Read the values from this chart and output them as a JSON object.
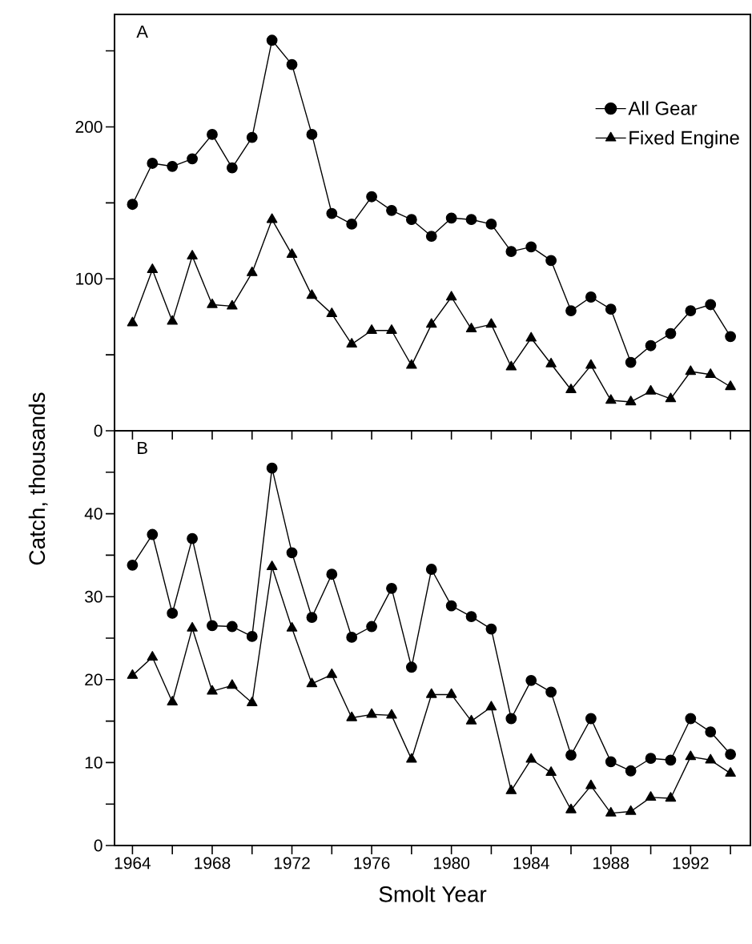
{
  "chart_data": [
    {
      "type": "line",
      "annotations": [
        "A"
      ],
      "ylabel": "Catch, thousands",
      "x": [
        1964,
        1965,
        1966,
        1967,
        1968,
        1969,
        1970,
        1971,
        1972,
        1973,
        1974,
        1975,
        1976,
        1977,
        1978,
        1979,
        1980,
        1981,
        1982,
        1983,
        1984,
        1985,
        1986,
        1987,
        1988,
        1989,
        1990,
        1991,
        1992,
        1993,
        1994
      ],
      "series": [
        {
          "name": "All Gear",
          "color": "#000000",
          "marker": "circle",
          "values": [
            149,
            176,
            174,
            179,
            195,
            173,
            193,
            257,
            241,
            195,
            143,
            136,
            154,
            145,
            139,
            128,
            140,
            139,
            136,
            118,
            121,
            112,
            79,
            88,
            80,
            45,
            56,
            64,
            79,
            83,
            62
          ]
        },
        {
          "name": "Fixed Engine",
          "color": "#000000",
          "marker": "triangle",
          "values": [
            71,
            106,
            72,
            115,
            83,
            82,
            104,
            139,
            116,
            89,
            77,
            57,
            66,
            66,
            43,
            70,
            88,
            67,
            70,
            42,
            61,
            44,
            27,
            43,
            20,
            19,
            26,
            21,
            39,
            37,
            29
          ]
        }
      ],
      "xlim": [
        1963.1,
        1995
      ],
      "ylim": [
        0,
        274
      ],
      "xticks": [
        {
          "value": 1964,
          "label": null
        },
        {
          "value": 1966,
          "label": null
        },
        {
          "value": 1968,
          "label": null
        },
        {
          "value": 1970,
          "label": null
        },
        {
          "value": 1972,
          "label": null
        },
        {
          "value": 1974,
          "label": null
        },
        {
          "value": 1976,
          "label": null
        },
        {
          "value": 1978,
          "label": null
        },
        {
          "value": 1980,
          "label": null
        },
        {
          "value": 1982,
          "label": null
        },
        {
          "value": 1984,
          "label": null
        },
        {
          "value": 1986,
          "label": null
        },
        {
          "value": 1988,
          "label": null
        },
        {
          "value": 1990,
          "label": null
        },
        {
          "value": 1992,
          "label": null
        },
        {
          "value": 1994,
          "label": null
        }
      ],
      "yticks": [
        0,
        {
          "value": 50,
          "label": null
        },
        100,
        {
          "value": 150,
          "label": null
        },
        200,
        {
          "value": 250,
          "label": null
        }
      ],
      "tick_labels": "y",
      "legend": "top right",
      "grid": false
    },
    {
      "type": "line",
      "annotations": [
        "B"
      ],
      "xlabel": "Smolt Year",
      "x": [
        1964,
        1965,
        1966,
        1967,
        1968,
        1969,
        1970,
        1971,
        1972,
        1973,
        1974,
        1975,
        1976,
        1977,
        1978,
        1979,
        1980,
        1981,
        1982,
        1983,
        1984,
        1985,
        1986,
        1987,
        1988,
        1989,
        1990,
        1991,
        1992,
        1993,
        1994
      ],
      "series": [
        {
          "color": "#000000",
          "marker": "circle",
          "values": [
            33.8,
            37.5,
            28,
            37,
            26.5,
            26.4,
            25.2,
            45.5,
            35.3,
            27.5,
            32.7,
            25.1,
            26.4,
            31,
            21.5,
            33.3,
            28.9,
            27.6,
            26.1,
            15.3,
            19.9,
            18.5,
            10.9,
            15.3,
            10.1,
            9,
            10.5,
            10.3,
            15.3,
            13.7,
            11
          ]
        },
        {
          "color": "#000000",
          "marker": "triangle",
          "values": [
            20.5,
            22.7,
            17.3,
            26.2,
            18.6,
            19.3,
            17.2,
            33.6,
            26.2,
            19.5,
            20.6,
            15.4,
            15.8,
            15.7,
            10.4,
            18.2,
            18.2,
            15,
            16.7,
            6.6,
            10.4,
            8.8,
            4.3,
            7.2,
            3.9,
            4.1,
            5.8,
            5.7,
            10.7,
            10.3,
            8.7
          ]
        }
      ],
      "xlim": [
        1963.1,
        1995
      ],
      "ylim": [
        0,
        50
      ],
      "xticks": [
        1964,
        {
          "value": 1966,
          "label": null
        },
        1968,
        {
          "value": 1970,
          "label": null
        },
        1972,
        {
          "value": 1974,
          "label": null
        },
        1976,
        {
          "value": 1978,
          "label": null
        },
        1980,
        {
          "value": 1982,
          "label": null
        },
        1984,
        {
          "value": 1986,
          "label": null
        },
        1988,
        {
          "value": 1990,
          "label": null
        },
        1992,
        {
          "value": 1994,
          "label": null
        }
      ],
      "yticks": [
        0,
        {
          "value": 5,
          "label": null
        },
        10,
        {
          "value": 15,
          "label": null
        },
        20,
        {
          "value": 25,
          "label": null
        },
        30,
        {
          "value": 35,
          "label": null
        },
        40,
        {
          "value": 45,
          "label": null
        }
      ],
      "grid": false
    }
  ]
}
